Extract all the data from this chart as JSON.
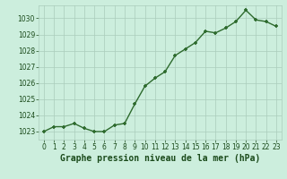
{
  "x": [
    0,
    1,
    2,
    3,
    4,
    5,
    6,
    7,
    8,
    9,
    10,
    11,
    12,
    13,
    14,
    15,
    16,
    17,
    18,
    19,
    20,
    21,
    22,
    23
  ],
  "y": [
    1023.0,
    1023.3,
    1023.3,
    1023.5,
    1023.2,
    1023.0,
    1023.0,
    1023.4,
    1023.5,
    1024.7,
    1025.8,
    1026.3,
    1026.7,
    1027.7,
    1028.1,
    1028.5,
    1029.2,
    1029.1,
    1029.4,
    1029.8,
    1030.5,
    1029.9,
    1029.8,
    1029.5
  ],
  "line_color": "#2d6a2d",
  "marker_color": "#2d6a2d",
  "bg_color": "#cceedd",
  "grid_color": "#aaccbb",
  "xlabel": "Graphe pression niveau de la mer (hPa)",
  "xlabel_color": "#1a4a1a",
  "tick_color": "#1a4a1a",
  "ylim": [
    1022.5,
    1030.8
  ],
  "yticks": [
    1023,
    1024,
    1025,
    1026,
    1027,
    1028,
    1029,
    1030
  ],
  "xlim": [
    -0.5,
    23.5
  ],
  "xticks": [
    0,
    1,
    2,
    3,
    4,
    5,
    6,
    7,
    8,
    9,
    10,
    11,
    12,
    13,
    14,
    15,
    16,
    17,
    18,
    19,
    20,
    21,
    22,
    23
  ],
  "tick_fontsize": 5.5,
  "xlabel_fontsize": 7.0,
  "linewidth": 1.0,
  "markersize": 3.0
}
